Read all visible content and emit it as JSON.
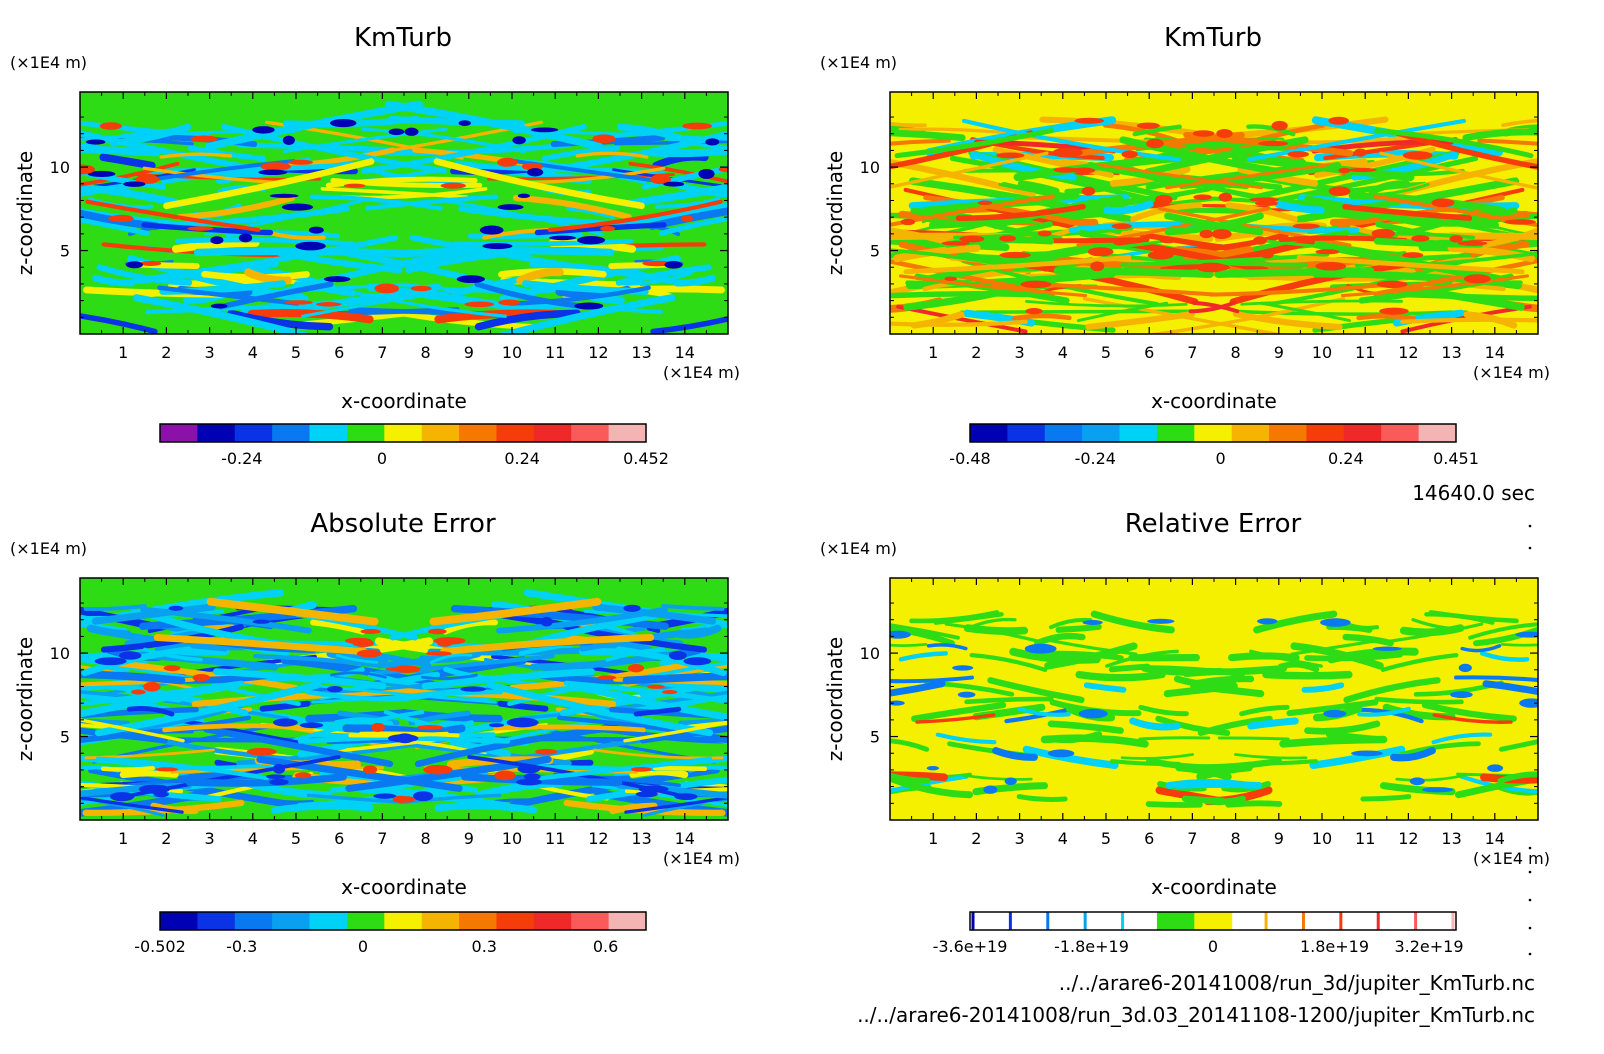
{
  "time_label": "14640.0 sec",
  "files": [
    "../../arare6-20141008/run_3d/jupiter_KmTurb.nc",
    "../../arare6-20141008/run_3d.03_20141108-1200/jupiter_KmTurb.nc"
  ],
  "chart_data": [
    {
      "type": "heatmap",
      "title": "KmTurb",
      "xlabel": "x-coordinate",
      "ylabel": "z-coordinate",
      "x_unit": "(×1E4 m)",
      "y_unit": "(×1E4 m)",
      "xlim": [
        0,
        15
      ],
      "ylim": [
        0,
        14.5
      ],
      "xticks": [
        1,
        2,
        3,
        4,
        5,
        6,
        7,
        8,
        9,
        10,
        11,
        12,
        13,
        14
      ],
      "yticks": [
        5,
        10
      ],
      "background_level": 0,
      "colorbar": {
        "colors": [
          "#8a12a8",
          "#0000b4",
          "#0a32e6",
          "#0a78f0",
          "#00d2f5",
          "#2ddc14",
          "#f5f000",
          "#f5b400",
          "#f57800",
          "#f53c0a",
          "#f02828",
          "#fa5a5a",
          "#f5b4b4"
        ],
        "tick_labels": [
          "-0.24",
          "0",
          "0.24",
          "0.452"
        ],
        "tick_values": [
          -0.24,
          0,
          0.24,
          0.452
        ],
        "range": [
          -0.38,
          0.452
        ]
      }
    },
    {
      "type": "heatmap",
      "title": "KmTurb",
      "xlabel": "x-coordinate",
      "ylabel": "z-coordinate",
      "x_unit": "(×1E4 m)",
      "y_unit": "(×1E4 m)",
      "xlim": [
        0,
        15
      ],
      "ylim": [
        0,
        14.5
      ],
      "xticks": [
        1,
        2,
        3,
        4,
        5,
        6,
        7,
        8,
        9,
        10,
        11,
        12,
        13,
        14
      ],
      "yticks": [
        5,
        10
      ],
      "background_level": 0.05,
      "colorbar": {
        "colors": [
          "#0000b4",
          "#0a32e6",
          "#0a78f0",
          "#0aa0f0",
          "#00d2f5",
          "#2ddc14",
          "#f5f000",
          "#f5b400",
          "#f57800",
          "#f53c0a",
          "#f02828",
          "#fa5a5a",
          "#f5b4b4"
        ],
        "tick_labels": [
          "-0.48",
          "-0.24",
          "0",
          "0.24",
          "0.451"
        ],
        "tick_values": [
          -0.48,
          -0.24,
          0,
          0.24,
          0.451
        ],
        "range": [
          -0.48,
          0.451
        ]
      }
    },
    {
      "type": "heatmap",
      "title": "Absolute Error",
      "xlabel": "x-coordinate",
      "ylabel": "z-coordinate",
      "x_unit": "(×1E4 m)",
      "y_unit": "(×1E4 m)",
      "xlim": [
        0,
        15
      ],
      "ylim": [
        0,
        14.5
      ],
      "xticks": [
        1,
        2,
        3,
        4,
        5,
        6,
        7,
        8,
        9,
        10,
        11,
        12,
        13,
        14
      ],
      "yticks": [
        5,
        10
      ],
      "background_level": 0,
      "colorbar": {
        "colors": [
          "#0000b4",
          "#0a32e6",
          "#0a78f0",
          "#0aa0f0",
          "#00d2f5",
          "#2ddc14",
          "#f5f000",
          "#f5b400",
          "#f57800",
          "#f53c0a",
          "#f02828",
          "#fa5a5a",
          "#f5b4b4"
        ],
        "tick_labels": [
          "-0.502",
          "-0.3",
          "0",
          "0.3",
          "0.6"
        ],
        "tick_values": [
          -0.502,
          -0.3,
          0,
          0.3,
          0.6
        ],
        "range": [
          -0.502,
          0.7
        ]
      }
    },
    {
      "type": "heatmap",
      "title": "Relative Error",
      "xlabel": "x-coordinate",
      "ylabel": "z-coordinate",
      "x_unit": "(×1E4 m)",
      "y_unit": "(×1E4 m)",
      "xlim": [
        0,
        15
      ],
      "ylim": [
        0,
        14.5
      ],
      "xticks": [
        1,
        2,
        3,
        4,
        5,
        6,
        7,
        8,
        9,
        10,
        11,
        12,
        13,
        14
      ],
      "yticks": [
        5,
        10
      ],
      "background_level": 0.05,
      "colorbar": {
        "colors": [
          "#0000b4",
          "#0a32e6",
          "#0a78f0",
          "#0aa0f0",
          "#00d2f5",
          "#2ddc14",
          "#f5f000",
          "#f5b400",
          "#f57800",
          "#f53c0a",
          "#f02828",
          "#fa5a5a",
          "#f5b4b4"
        ],
        "tick_labels": [
          "-3.6e+19",
          "-1.8e+19",
          "0",
          "1.8e+19",
          "3.2e+19"
        ],
        "tick_values": [
          -3.6e+19,
          -1.8e+19,
          0,
          1.8e+19,
          3.2e+19
        ],
        "range": [
          -3.6e+19,
          3.6e+19
        ]
      }
    }
  ]
}
